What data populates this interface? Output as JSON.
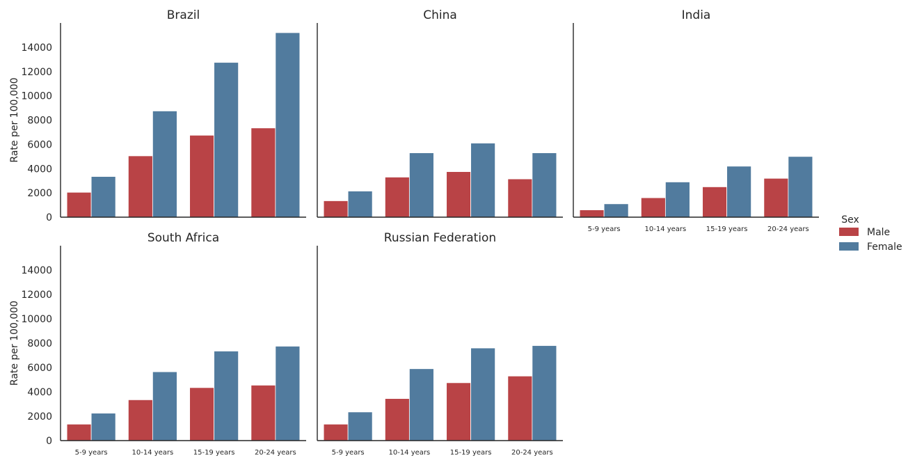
{
  "chart_data": {
    "type": "bar",
    "layout": "facet-grid",
    "categories": [
      "5-9 years",
      "10-14 years",
      "15-19 years",
      "20-24 years"
    ],
    "ylabel": "Rate per 100,000",
    "ylim": [
      0,
      16000
    ],
    "yticks": [
      0,
      2000,
      4000,
      6000,
      8000,
      10000,
      12000,
      14000
    ],
    "grid": false,
    "legend": {
      "title": "Sex",
      "placement": "right",
      "entries": [
        {
          "name": "Male",
          "color": "#b94346"
        },
        {
          "name": "Female",
          "color": "#517b9e"
        }
      ]
    },
    "facets": [
      {
        "title": "Brazil",
        "series": [
          {
            "name": "Male",
            "values": [
              2050,
              5050,
              6750,
              7350
            ]
          },
          {
            "name": "Female",
            "values": [
              3350,
              8750,
              12750,
              15200
            ]
          }
        ]
      },
      {
        "title": "China",
        "series": [
          {
            "name": "Male",
            "values": [
              1350,
              3300,
              3750,
              3150
            ]
          },
          {
            "name": "Female",
            "values": [
              2150,
              5300,
              6100,
              5300
            ]
          }
        ]
      },
      {
        "title": "India",
        "series": [
          {
            "name": "Male",
            "values": [
              600,
              1600,
              2500,
              3200
            ]
          },
          {
            "name": "Female",
            "values": [
              1100,
              2900,
              4200,
              5000
            ]
          }
        ]
      },
      {
        "title": "South Africa",
        "series": [
          {
            "name": "Male",
            "values": [
              1350,
              3350,
              4350,
              4550
            ]
          },
          {
            "name": "Female",
            "values": [
              2250,
              5650,
              7350,
              7750
            ]
          }
        ]
      },
      {
        "title": "Russian Federation",
        "series": [
          {
            "name": "Male",
            "values": [
              1350,
              3450,
              4750,
              5300
            ]
          },
          {
            "name": "Female",
            "values": [
              2350,
              5900,
              7600,
              7800
            ]
          }
        ]
      }
    ]
  }
}
